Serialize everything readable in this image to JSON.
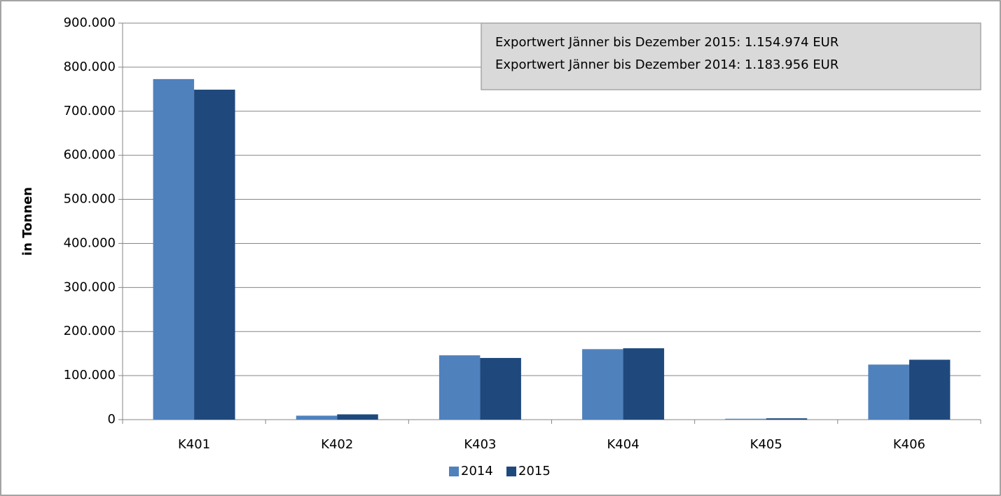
{
  "chart_data": {
    "type": "bar",
    "y_label": "in Tonnen",
    "annotations": [
      "Exportwert Jänner bis Dezember 2015: 1.154.974 EUR",
      "Exportwert Jänner bis Dezember 2014: 1.183.956 EUR"
    ],
    "categories": [
      "K401",
      "K402",
      "K403",
      "K404",
      "K405",
      "K406"
    ],
    "series": [
      {
        "name": "2014",
        "color": "#4f81bd",
        "values": [
          773000,
          9000,
          146000,
          160000,
          2000,
          125000
        ]
      },
      {
        "name": "2015",
        "color": "#1f497d",
        "values": [
          749000,
          12000,
          140000,
          162000,
          3000,
          136000
        ]
      }
    ],
    "ylim": [
      0,
      900000
    ],
    "yticks": [
      0,
      {
        "value": 100000,
        "label": "100.000"
      },
      {
        "value": 200000,
        "label": "200.000"
      },
      {
        "value": 300000,
        "label": "300.000"
      },
      {
        "value": 400000,
        "label": "400.000"
      },
      {
        "value": 500000,
        "label": "500.000"
      },
      {
        "value": 600000,
        "label": "600.000"
      },
      {
        "value": 700000,
        "label": "700.000"
      },
      {
        "value": 800000,
        "label": "800.000"
      },
      {
        "value": 900000,
        "label": "900.000"
      }
    ],
    "grid": true,
    "legend": "bottom"
  }
}
